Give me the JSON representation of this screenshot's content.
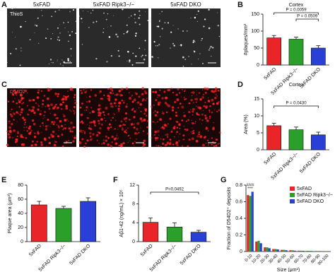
{
  "images": {
    "panels": [
      "A",
      "C"
    ],
    "headers": [
      "5xFAD",
      "5xFAD Ripk3−/−",
      "5xFAD DKO"
    ],
    "stains": [
      "ThioS",
      "D54D2"
    ]
  },
  "chart_data": [
    {
      "type": "bar",
      "panel": "B",
      "title": "Cortex",
      "ylabel": "#plaques/mm²",
      "categories": [
        "5xFAD",
        "5xFAD Ripk3−/−",
        "5xFAD DKO"
      ],
      "values": [
        80,
        76,
        50
      ],
      "errors": [
        7,
        6,
        7
      ],
      "colors": [
        "#e8262a",
        "#2aa02a",
        "#2a3fd6"
      ],
      "ylim": [
        0,
        150
      ],
      "yticks": [
        0,
        50,
        100,
        150
      ],
      "comparisons": [
        {
          "label": "P = 0.0059",
          "groups": [
            "5xFAD",
            "5xFAD DKO"
          ]
        },
        {
          "label": "P = 0.0509",
          "groups": [
            "5xFAD Ripk3−/−",
            "5xFAD DKO"
          ]
        }
      ]
    },
    {
      "type": "bar",
      "panel": "D",
      "title": "Cortex",
      "ylabel": "Area (%)",
      "categories": [
        "5xFAD",
        "5xFAD Ripk3−/−",
        "5xFAD DKO"
      ],
      "values": [
        7.1,
        5.9,
        4.4
      ],
      "errors": [
        0.7,
        0.8,
        0.8
      ],
      "colors": [
        "#e8262a",
        "#2aa02a",
        "#2a3fd6"
      ],
      "ylim": [
        0,
        15
      ],
      "yticks": [
        0,
        5,
        10,
        15
      ],
      "comparisons": [
        {
          "label": "P = 0.0430",
          "groups": [
            "5xFAD",
            "5xFAD DKO"
          ]
        }
      ]
    },
    {
      "type": "bar",
      "panel": "E",
      "ylabel": "Plaque area (μm²)",
      "categories": [
        "5xFAD",
        "5xFAD Ripk3−/−",
        "5xFAD DKO"
      ],
      "values": [
        52,
        47,
        57
      ],
      "errors": [
        5,
        3,
        5
      ],
      "colors": [
        "#e8262a",
        "#2aa02a",
        "#2a3fd6"
      ],
      "ylim": [
        0,
        80
      ],
      "yticks": [
        0,
        20,
        40,
        60,
        80
      ],
      "comparisons": []
    },
    {
      "type": "bar",
      "panel": "F",
      "ylabel": "Aβ1-42 (ng/mL) × 10⁵",
      "categories": [
        "5xFAD",
        "5xFAD Ripk3−/−",
        "5xFAD DKO"
      ],
      "values": [
        4.1,
        3.1,
        2.0
      ],
      "errors": [
        0.9,
        0.9,
        0.4
      ],
      "colors": [
        "#e8262a",
        "#2aa02a",
        "#2a3fd6"
      ],
      "ylim": [
        0,
        12
      ],
      "yticks": [
        0,
        4,
        8,
        12
      ],
      "comparisons": [
        {
          "label": "P=0.0492",
          "groups": [
            "5xFAD",
            "5xFAD DKO"
          ]
        }
      ]
    },
    {
      "type": "grouped_bar",
      "panel": "G",
      "ylabel": "Fraction of D54D2⁺ deposits",
      "xlabel": "Size (μm²)",
      "categories": [
        "0-10",
        "10-20",
        "20-30",
        "30-40",
        "40-50",
        "50-60",
        "60-70",
        "70-80",
        "80-90",
        "90-100"
      ],
      "series": [
        {
          "name": "5xFAD",
          "color": "#e8262a",
          "values": [
            0.68,
            0.12,
            0.05,
            0.03,
            0.02,
            0.015,
            0.01,
            0.008,
            0.006,
            0.005
          ]
        },
        {
          "name": "5xFAD Ripk3−/−",
          "color": "#2aa02a",
          "values": [
            0.67,
            0.13,
            0.05,
            0.03,
            0.02,
            0.015,
            0.01,
            0.008,
            0.006,
            0.005
          ]
        },
        {
          "name": "5xFAD DKO",
          "color": "#2a3fd6",
          "values": [
            0.72,
            0.1,
            0.04,
            0.025,
            0.015,
            0.01,
            0.008,
            0.006,
            0.005,
            0.004
          ]
        }
      ],
      "ylim": [
        0,
        0.8
      ],
      "yticks": [
        0,
        0.2,
        0.4,
        0.6,
        0.8
      ],
      "annotations": [
        "####",
        "****"
      ],
      "legend": "upper right"
    }
  ]
}
